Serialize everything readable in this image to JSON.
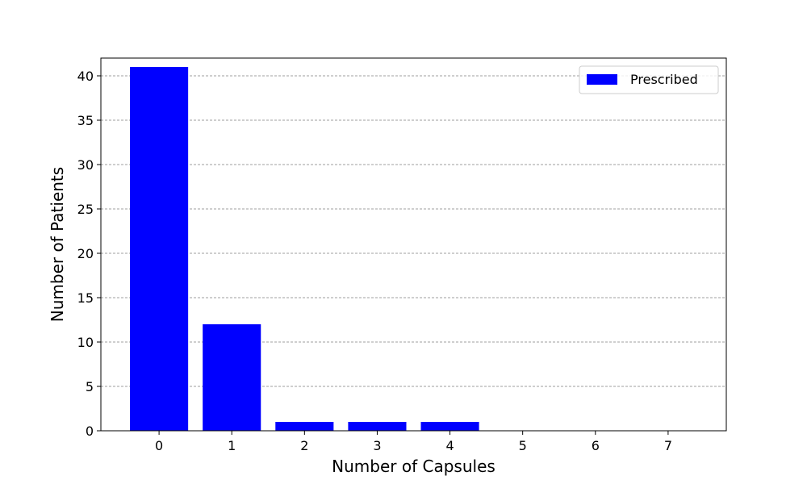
{
  "chart_data": {
    "type": "bar",
    "categories": [
      "0",
      "1",
      "2",
      "3",
      "4",
      "5",
      "6",
      "7"
    ],
    "series": [
      {
        "name": "Prescribed",
        "color": "#0000ff",
        "values": [
          41,
          12,
          1,
          1,
          1,
          0,
          0,
          0
        ]
      }
    ],
    "xlabel": "Number of Capsules",
    "ylabel": "Number of Patients",
    "ylim": [
      0,
      42
    ],
    "yticks": [
      0,
      5,
      10,
      15,
      20,
      25,
      30,
      35,
      40
    ],
    "grid": "y-dashed",
    "legend": "top-right"
  }
}
